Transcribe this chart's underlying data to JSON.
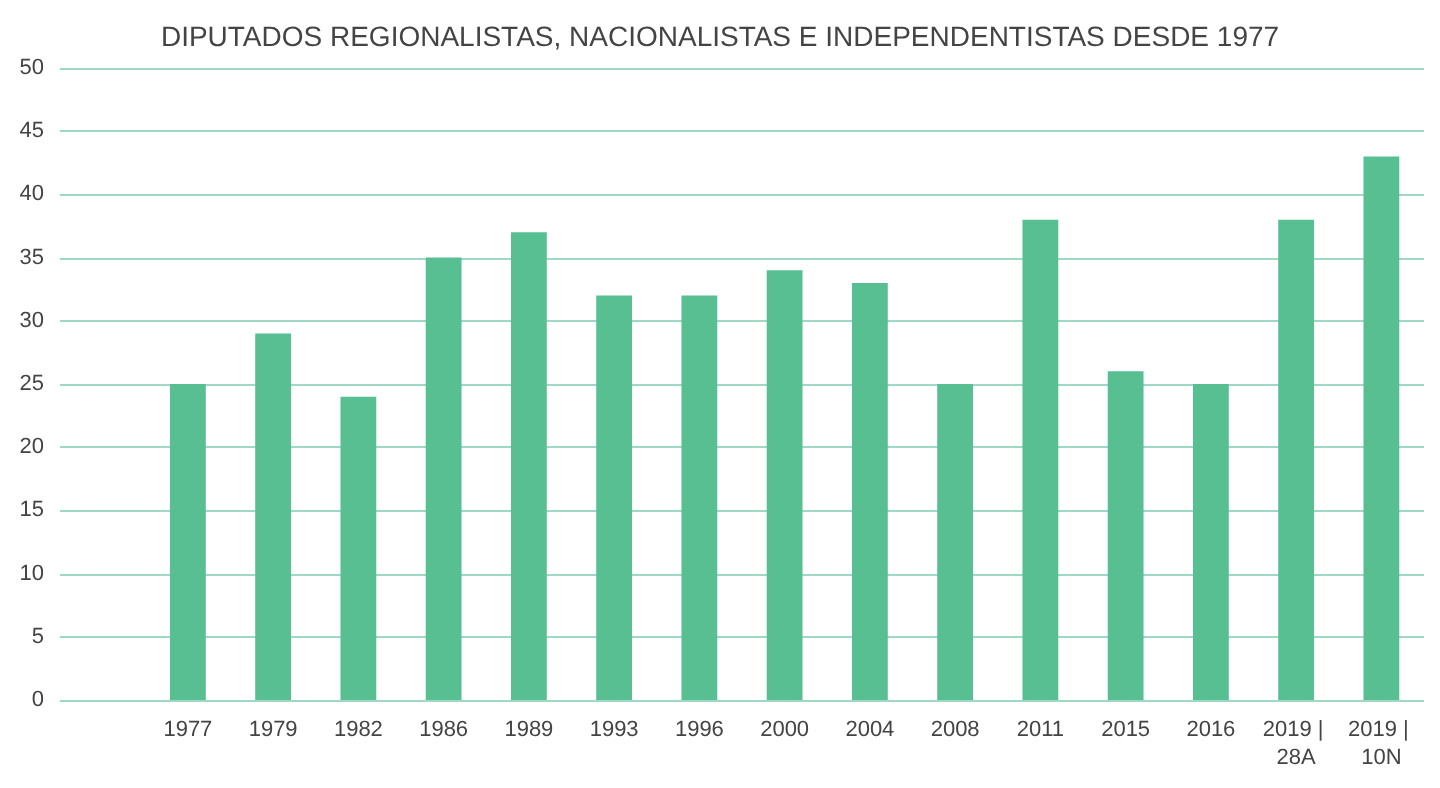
{
  "chart_data": {
    "type": "bar",
    "title": "DIPUTADOS REGIONALISTAS, NACIONALISTAS E INDEPENDENTISTAS DESDE 1977",
    "categories": [
      null,
      "1977",
      "1979",
      "1982",
      "1986",
      "1989",
      "1993",
      "1996",
      "2000",
      "2004",
      "2008",
      "2011",
      "2015",
      "2016",
      "2019 | 28A",
      "2019 | 10N"
    ],
    "values": [
      null,
      25,
      29,
      24,
      35,
      37,
      32,
      32,
      34,
      33,
      25,
      38,
      26,
      25,
      38,
      43
    ],
    "color": "#58bf93",
    "ylim": [
      0,
      50
    ],
    "yticks": [
      0,
      5,
      10,
      15,
      20,
      25,
      30,
      35,
      40,
      45,
      50
    ],
    "grid": "y"
  }
}
